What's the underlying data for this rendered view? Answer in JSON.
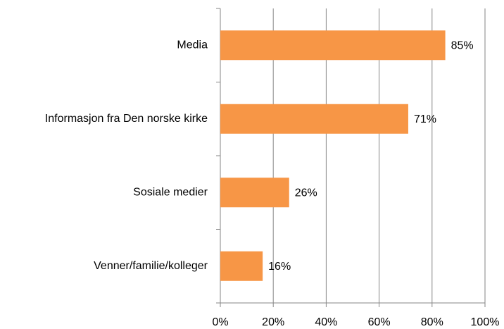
{
  "chart_data": {
    "type": "hbar",
    "categories": [
      "Media",
      "Informasjon fra Den norske kirke",
      "Sosiale medier",
      "Venner/familie/kolleger"
    ],
    "values": [
      85,
      71,
      26,
      16
    ],
    "value_labels": [
      "85%",
      "71%",
      "26%",
      "16%"
    ],
    "color": "#f79646",
    "xlim": [
      0,
      100
    ],
    "xticks": [
      {
        "value": 0,
        "label": "0%"
      },
      {
        "value": 20,
        "label": "20%"
      },
      {
        "value": 40,
        "label": "40%"
      },
      {
        "value": 60,
        "label": "60%"
      },
      {
        "value": 80,
        "label": "80%"
      },
      {
        "value": 100,
        "label": "100%"
      }
    ],
    "grid": true
  }
}
